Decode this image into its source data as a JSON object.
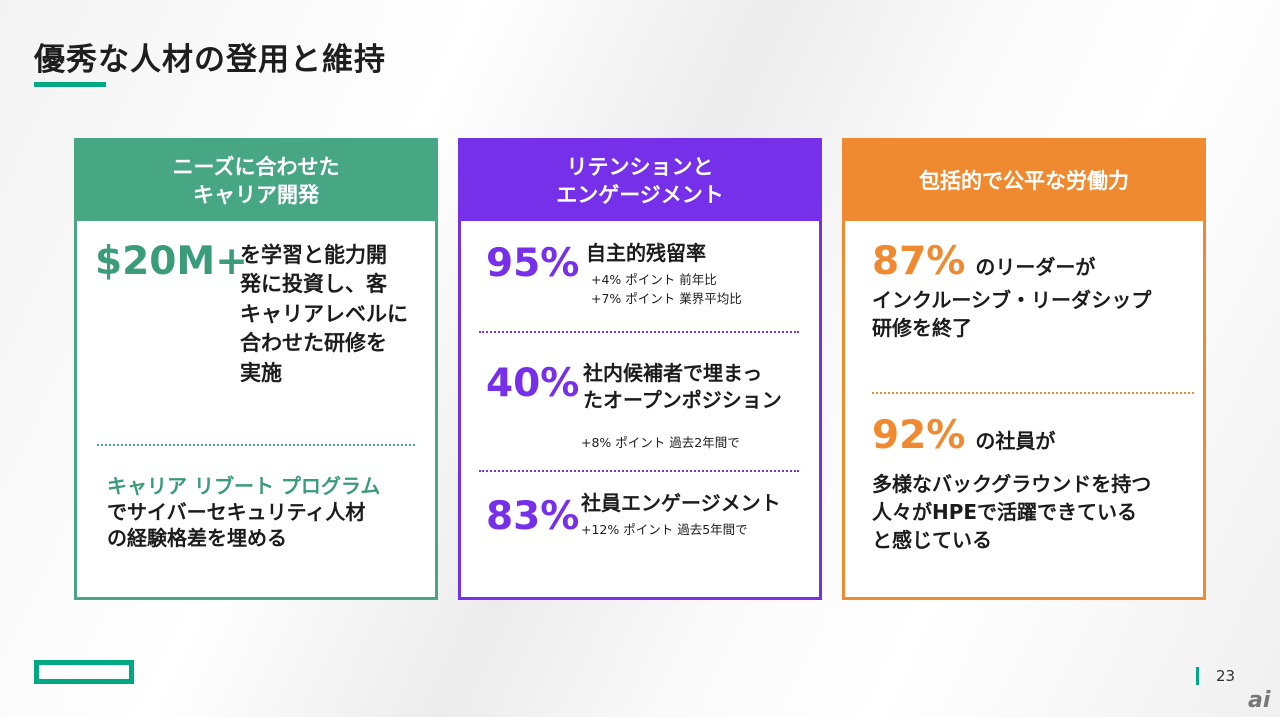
{
  "title": "優秀な人材の登用と維持",
  "cards": {
    "career": {
      "header_line1": "ニーズに合わせた",
      "header_line2": "キャリア開発",
      "stat": "$20M+",
      "desc_lines": [
        "を学習と能力開",
        "発に投資し、客",
        "キャリアレベルに",
        "合わせた研修を",
        "実施"
      ],
      "program_label": "キャリア リブート プログラム",
      "program_lines": [
        "でサイバーセキュリティ人材",
        "の経験格差を埋める"
      ]
    },
    "retention": {
      "header_line1": "リテンションと",
      "header_line2": "エンゲージメント",
      "stat1": "95%",
      "stat1_label": "自主的残留率",
      "stat1_note1": "+4% ポイント 前年比",
      "stat1_note2": "+7% ポイント 業界平均比",
      "stat2": "40%",
      "stat2_label_line1": "社内候補者で埋まっ",
      "stat2_label_line2": "たオープンポジション",
      "stat2_note": "+8% ポイント 過去2年間で",
      "stat3": "83%",
      "stat3_label": "社員エンゲージメント",
      "stat3_note": "+12% ポイント 過去5年間で"
    },
    "inclusive": {
      "header": "包括的で公平な労働力",
      "stat1": "87%",
      "stat1_suffix": "のリーダーが",
      "stat1_line2": "インクルーシブ・リーダシップ",
      "stat1_line3": "研修を終了",
      "stat2": "92%",
      "stat2_suffix": "の社員が",
      "stat2_lines": [
        "多様なバックグラウンドを持つ",
        "人々がHPEで活躍できている",
        "と感じている"
      ]
    }
  },
  "footer": {
    "page_number": "23",
    "watermark": "ai"
  },
  "colors": {
    "green": "#47a785",
    "purple": "#7630ea",
    "orange": "#f08a30",
    "brand": "#01a982"
  }
}
